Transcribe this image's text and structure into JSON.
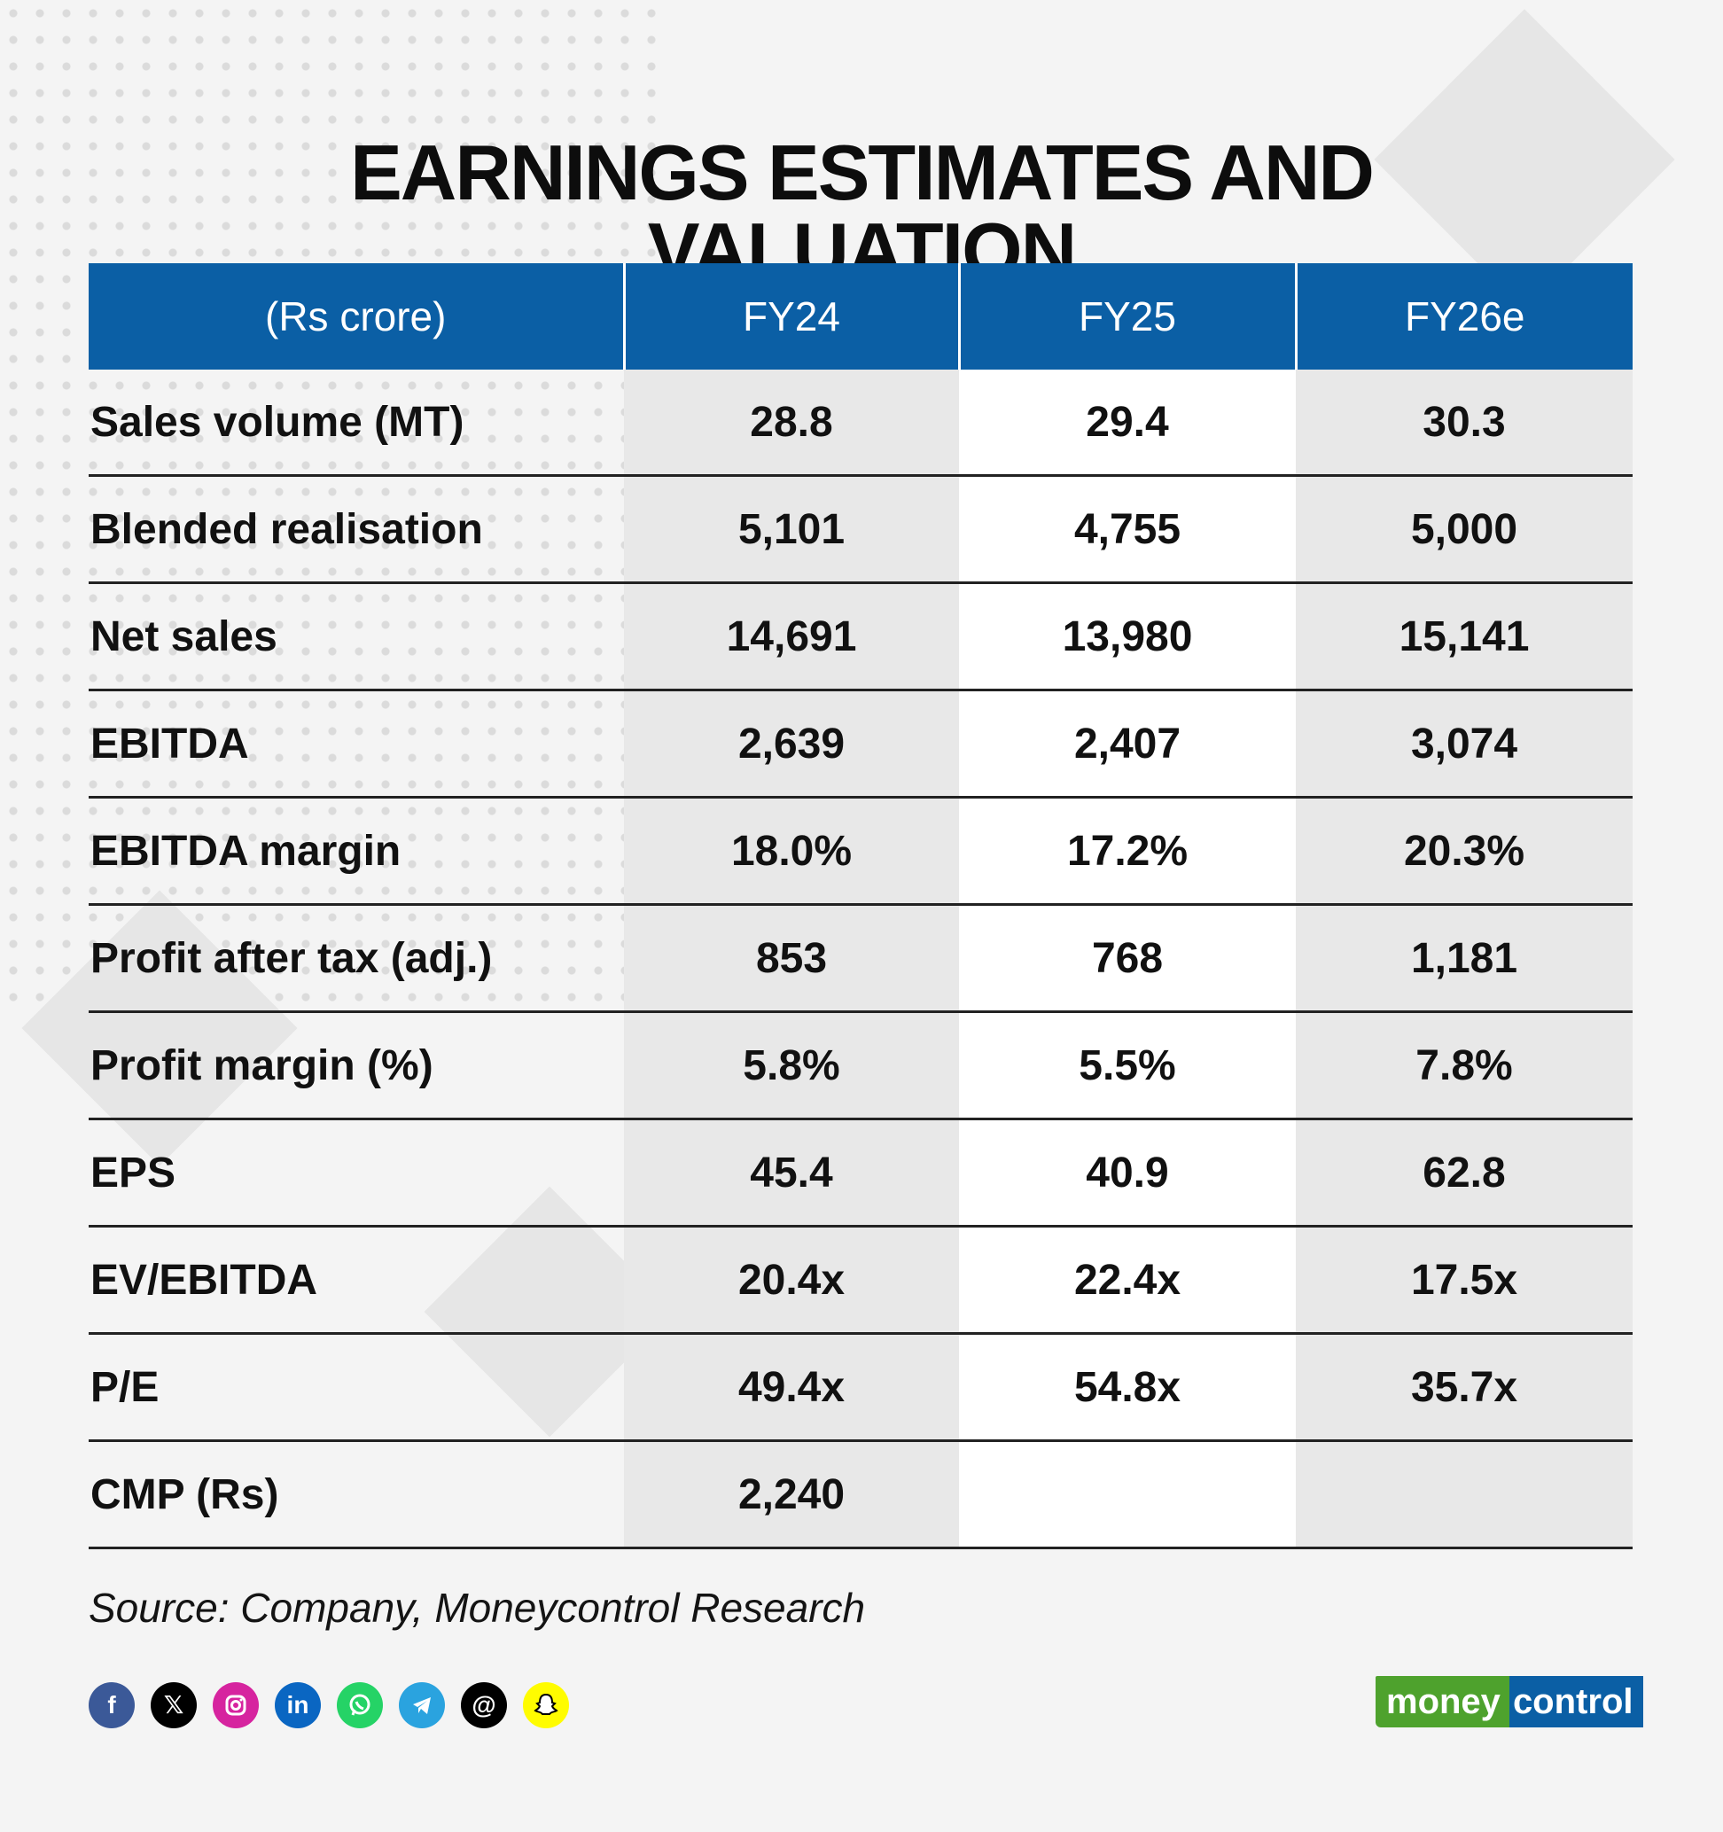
{
  "title": {
    "line1": "EARNINGS ESTIMATES AND",
    "line2": "VALUATION"
  },
  "table": {
    "headers": [
      "(Rs crore)",
      "FY24",
      "FY25",
      "FY26e"
    ],
    "rows": [
      [
        "Sales volume (MT)",
        "28.8",
        "29.4",
        "30.3"
      ],
      [
        "Blended realisation",
        "5,101",
        "4,755",
        "5,000"
      ],
      [
        "Net sales",
        "14,691",
        "13,980",
        "15,141"
      ],
      [
        "EBITDA",
        "2,639",
        "2,407",
        "3,074"
      ],
      [
        "EBITDA margin",
        "18.0%",
        "17.2%",
        "20.3%"
      ],
      [
        "Profit after tax (adj.)",
        "853",
        "768",
        "1,181"
      ],
      [
        "Profit margin (%)",
        "5.8%",
        "5.5%",
        "7.8%"
      ],
      [
        "EPS",
        "45.4",
        "40.9",
        "62.8"
      ],
      [
        "EV/EBITDA",
        "20.4x",
        "22.4x",
        "17.5x"
      ],
      [
        "P/E",
        "49.4x",
        "54.8x",
        "35.7x"
      ],
      [
        "CMP (Rs)",
        "2,240",
        "",
        ""
      ]
    ]
  },
  "source": "Source: Company, Moneycontrol Research",
  "socials": [
    {
      "name": "facebook-icon",
      "glyph": "f",
      "color": "#3b5998"
    },
    {
      "name": "x-icon",
      "glyph": "𝕏",
      "color": "#000000"
    },
    {
      "name": "instagram-icon",
      "glyph": "",
      "color": "#d6249f"
    },
    {
      "name": "linkedin-icon",
      "glyph": "in",
      "color": "#0a66c2"
    },
    {
      "name": "whatsapp-icon",
      "glyph": "",
      "color": "#25d366"
    },
    {
      "name": "telegram-icon",
      "glyph": "",
      "color": "#2aa3df"
    },
    {
      "name": "threads-icon",
      "glyph": "@",
      "color": "#000000"
    },
    {
      "name": "snapchat-icon",
      "glyph": "",
      "color": "#fffc00"
    }
  ],
  "brand": {
    "part1": "money",
    "part2": "control"
  },
  "colors": {
    "header_blue": "#0b5fa5",
    "brand_green": "#4ea22d",
    "row_shade": "#e8e8e8"
  }
}
